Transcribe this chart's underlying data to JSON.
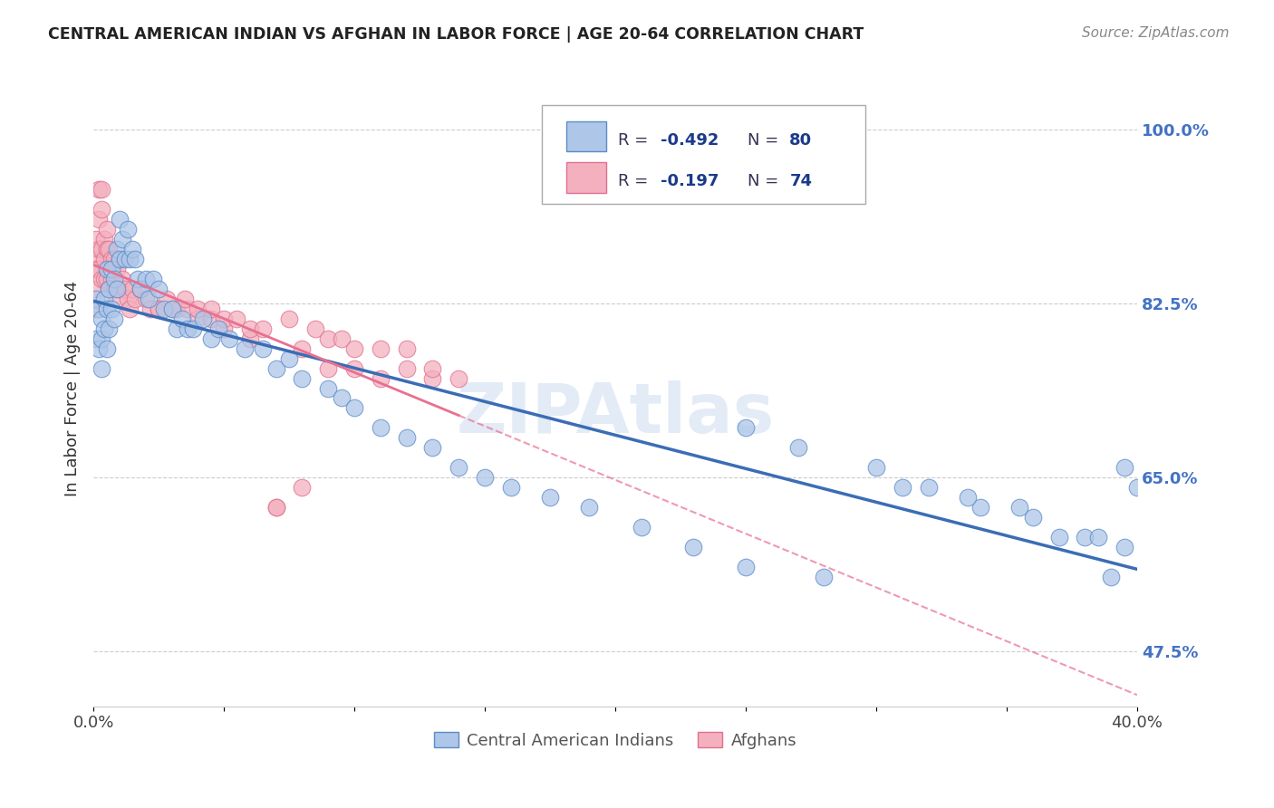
{
  "title": "CENTRAL AMERICAN INDIAN VS AFGHAN IN LABOR FORCE | AGE 20-64 CORRELATION CHART",
  "source": "Source: ZipAtlas.com",
  "ylabel": "In Labor Force | Age 20-64",
  "ylabel_ticks": [
    "47.5%",
    "65.0%",
    "82.5%",
    "100.0%"
  ],
  "ylabel_tick_vals": [
    0.475,
    0.65,
    0.825,
    1.0
  ],
  "xlim": [
    0.0,
    0.4
  ],
  "ylim": [
    0.42,
    1.06
  ],
  "blue_color": "#aec6e8",
  "pink_color": "#f4b0be",
  "blue_edge_color": "#5b8cc8",
  "pink_edge_color": "#e07090",
  "blue_line_color": "#3a6db5",
  "pink_line_color": "#e87090",
  "right_tick_color": "#4472c4",
  "watermark": "ZIPAtlas",
  "blue_scatter_x": [
    0.001,
    0.001,
    0.002,
    0.002,
    0.003,
    0.003,
    0.003,
    0.004,
    0.004,
    0.005,
    0.005,
    0.005,
    0.006,
    0.006,
    0.007,
    0.007,
    0.008,
    0.008,
    0.009,
    0.009,
    0.01,
    0.01,
    0.011,
    0.012,
    0.013,
    0.014,
    0.015,
    0.016,
    0.017,
    0.018,
    0.02,
    0.021,
    0.023,
    0.025,
    0.027,
    0.03,
    0.032,
    0.034,
    0.036,
    0.038,
    0.042,
    0.045,
    0.048,
    0.052,
    0.058,
    0.065,
    0.07,
    0.075,
    0.08,
    0.09,
    0.095,
    0.1,
    0.11,
    0.12,
    0.13,
    0.14,
    0.15,
    0.16,
    0.175,
    0.19,
    0.21,
    0.23,
    0.25,
    0.27,
    0.3,
    0.32,
    0.34,
    0.36,
    0.38,
    0.395,
    0.25,
    0.28,
    0.31,
    0.335,
    0.355,
    0.37,
    0.385,
    0.39,
    0.395,
    0.4
  ],
  "blue_scatter_y": [
    0.83,
    0.79,
    0.82,
    0.78,
    0.81,
    0.79,
    0.76,
    0.83,
    0.8,
    0.86,
    0.82,
    0.78,
    0.84,
    0.8,
    0.86,
    0.82,
    0.85,
    0.81,
    0.88,
    0.84,
    0.91,
    0.87,
    0.89,
    0.87,
    0.9,
    0.87,
    0.88,
    0.87,
    0.85,
    0.84,
    0.85,
    0.83,
    0.85,
    0.84,
    0.82,
    0.82,
    0.8,
    0.81,
    0.8,
    0.8,
    0.81,
    0.79,
    0.8,
    0.79,
    0.78,
    0.78,
    0.76,
    0.77,
    0.75,
    0.74,
    0.73,
    0.72,
    0.7,
    0.69,
    0.68,
    0.66,
    0.65,
    0.64,
    0.63,
    0.62,
    0.6,
    0.58,
    0.7,
    0.68,
    0.66,
    0.64,
    0.62,
    0.61,
    0.59,
    0.58,
    0.56,
    0.55,
    0.64,
    0.63,
    0.62,
    0.59,
    0.59,
    0.55,
    0.66,
    0.64
  ],
  "pink_scatter_x": [
    0.001,
    0.001,
    0.001,
    0.001,
    0.001,
    0.002,
    0.002,
    0.002,
    0.002,
    0.003,
    0.003,
    0.003,
    0.003,
    0.004,
    0.004,
    0.004,
    0.005,
    0.005,
    0.005,
    0.006,
    0.006,
    0.006,
    0.007,
    0.007,
    0.008,
    0.008,
    0.009,
    0.009,
    0.01,
    0.01,
    0.011,
    0.012,
    0.013,
    0.014,
    0.015,
    0.016,
    0.018,
    0.02,
    0.022,
    0.025,
    0.028,
    0.032,
    0.036,
    0.04,
    0.045,
    0.05,
    0.06,
    0.07,
    0.08,
    0.09,
    0.1,
    0.11,
    0.12,
    0.13,
    0.025,
    0.03,
    0.035,
    0.04,
    0.045,
    0.05,
    0.055,
    0.06,
    0.065,
    0.07,
    0.075,
    0.08,
    0.085,
    0.09,
    0.095,
    0.1,
    0.11,
    0.12,
    0.13,
    0.14
  ],
  "pink_scatter_y": [
    0.89,
    0.87,
    0.86,
    0.84,
    0.82,
    0.94,
    0.91,
    0.88,
    0.86,
    0.94,
    0.92,
    0.88,
    0.85,
    0.89,
    0.87,
    0.85,
    0.9,
    0.88,
    0.85,
    0.88,
    0.86,
    0.84,
    0.87,
    0.85,
    0.87,
    0.84,
    0.86,
    0.83,
    0.87,
    0.84,
    0.85,
    0.84,
    0.83,
    0.82,
    0.84,
    0.83,
    0.84,
    0.83,
    0.82,
    0.82,
    0.83,
    0.82,
    0.82,
    0.81,
    0.81,
    0.8,
    0.79,
    0.62,
    0.78,
    0.76,
    0.76,
    0.75,
    0.76,
    0.75,
    0.82,
    0.82,
    0.83,
    0.82,
    0.82,
    0.81,
    0.81,
    0.8,
    0.8,
    0.62,
    0.81,
    0.64,
    0.8,
    0.79,
    0.79,
    0.78,
    0.78,
    0.78,
    0.76,
    0.75
  ]
}
